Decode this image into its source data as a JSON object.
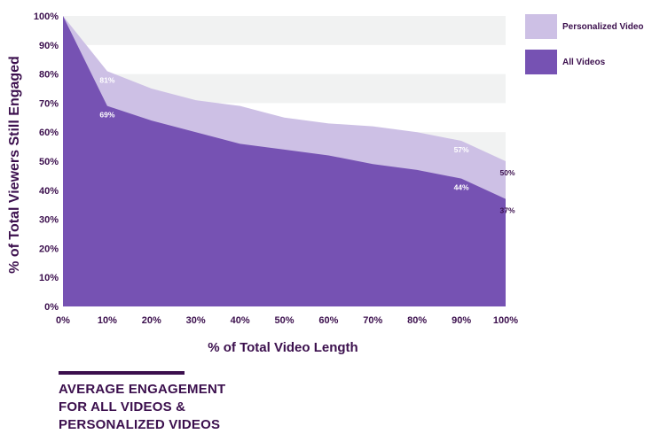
{
  "chart_data": {
    "type": "area",
    "title": "",
    "xlabel": "% of Total Video Length",
    "ylabel": "% of Total Viewers Still Engaged",
    "x": [
      0,
      10,
      20,
      30,
      40,
      50,
      60,
      70,
      80,
      90,
      100
    ],
    "x_tick_labels": [
      "0%",
      "10%",
      "20%",
      "30%",
      "40%",
      "50%",
      "60%",
      "70%",
      "80%",
      "90%",
      "100%"
    ],
    "y_tick_labels": [
      "0%",
      "10%",
      "20%",
      "30%",
      "40%",
      "50%",
      "60%",
      "70%",
      "80%",
      "90%",
      "100%"
    ],
    "xlim": [
      0,
      100
    ],
    "ylim": [
      0,
      100
    ],
    "grid": "alternating horizontal bands",
    "legend_position": "top-right",
    "series": [
      {
        "name": "Personalized Video",
        "color": "#cdc0e5",
        "values": [
          100,
          81,
          75,
          71,
          69,
          65,
          63,
          62,
          60,
          57,
          50
        ],
        "data_labels": [
          {
            "index": 1,
            "text": "81%"
          },
          {
            "index": 9,
            "text": "57%"
          },
          {
            "index": 10,
            "text": "50%"
          }
        ]
      },
      {
        "name": "All Videos",
        "color": "#7652b3",
        "values": [
          100,
          69,
          64,
          60,
          56,
          54,
          52,
          49,
          47,
          44,
          37
        ],
        "data_labels": [
          {
            "index": 1,
            "text": "69%"
          },
          {
            "index": 9,
            "text": "44%"
          },
          {
            "index": 10,
            "text": "37%"
          }
        ]
      }
    ]
  },
  "legend": {
    "personalized_label": "Personalized Video",
    "all_label": "All Videos"
  },
  "caption": {
    "line1": "AVERAGE ENGAGEMENT",
    "line2": "FOR ALL VIDEOS &",
    "line3": "PERSONALIZED VIDEOS"
  },
  "colors": {
    "text": "#3b0f4d",
    "band": "#f1f2f2"
  }
}
